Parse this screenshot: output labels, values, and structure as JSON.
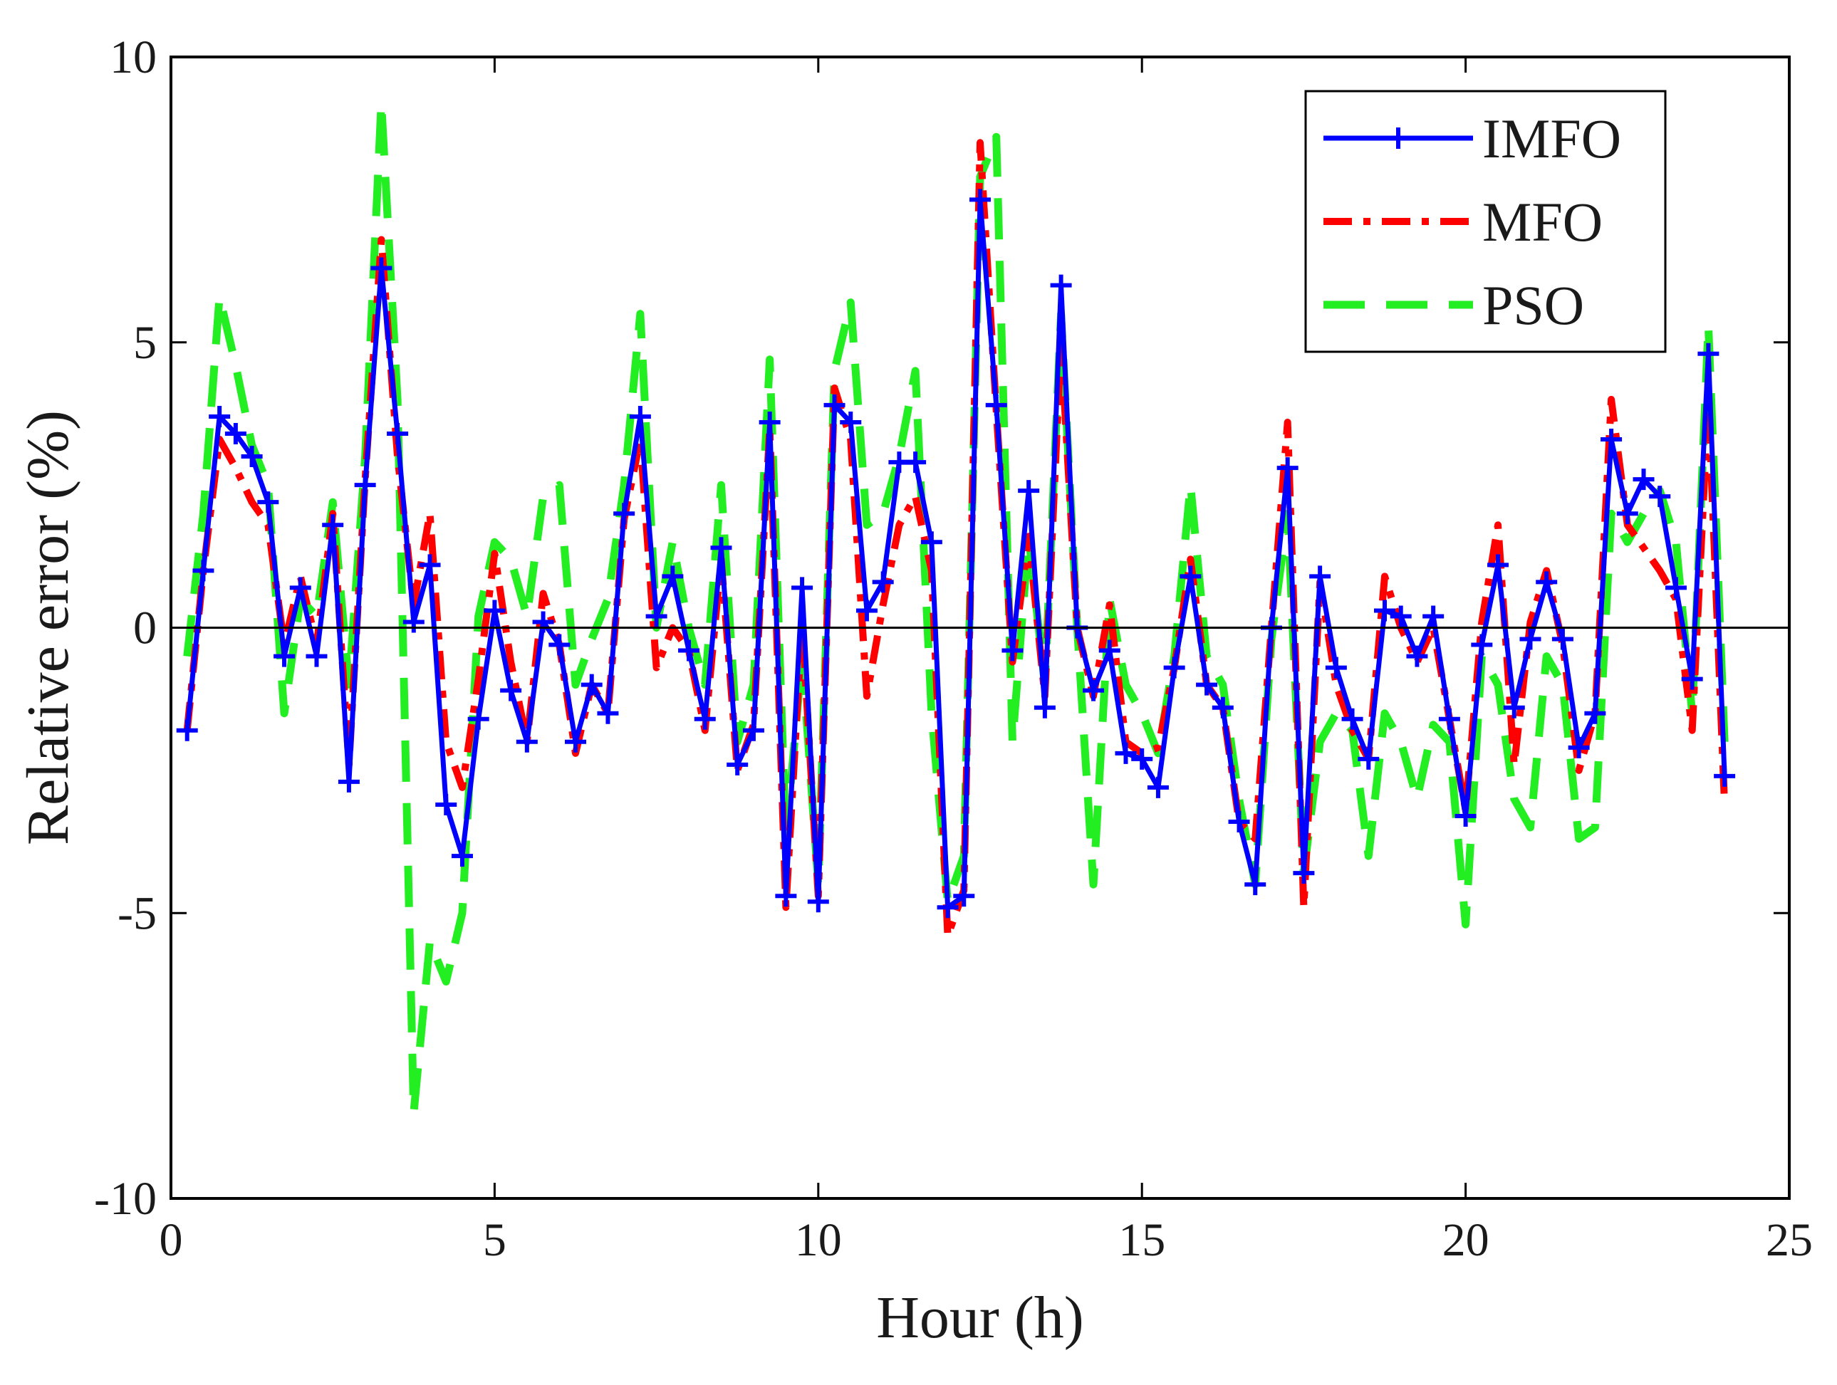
{
  "chart_data": {
    "type": "line",
    "title": "",
    "xlabel": "Hour (h)",
    "ylabel": "Relative error (%)",
    "xlim": [
      0,
      25
    ],
    "ylim": [
      -10,
      10
    ],
    "xticks": [
      "0",
      "5",
      "10",
      "15",
      "20",
      "25"
    ],
    "yticks": [
      "-10",
      "-5",
      "0",
      "5",
      "10"
    ],
    "xtick_values": [
      0,
      5,
      10,
      15,
      20,
      25
    ],
    "ytick_values": [
      -10,
      -5,
      0,
      5,
      10
    ],
    "zero_line": true,
    "grid": false,
    "legend_position": "top-right",
    "x": [
      0.25,
      0.5,
      0.75,
      1.0,
      1.25,
      1.5,
      1.75,
      2.0,
      2.25,
      2.5,
      2.75,
      3.0,
      3.25,
      3.5,
      3.75,
      4.0,
      4.25,
      4.5,
      4.75,
      5.0,
      5.25,
      5.5,
      5.75,
      6.0,
      6.25,
      6.5,
      6.75,
      7.0,
      7.25,
      7.5,
      7.75,
      8.0,
      8.25,
      8.5,
      8.75,
      9.0,
      9.25,
      9.5,
      9.75,
      10.0,
      10.25,
      10.5,
      10.75,
      11.0,
      11.25,
      11.5,
      11.75,
      12.0,
      12.25,
      12.5,
      12.75,
      13.0,
      13.25,
      13.5,
      13.75,
      14.0,
      14.25,
      14.5,
      14.75,
      15.0,
      15.25,
      15.5,
      15.75,
      16.0,
      16.25,
      16.5,
      16.75,
      17.0,
      17.25,
      17.5,
      17.75,
      18.0,
      18.25,
      18.5,
      18.75,
      19.0,
      19.25,
      19.5,
      19.75,
      20.0,
      20.25,
      20.5,
      20.75,
      21.0,
      21.25,
      21.5,
      21.75,
      22.0,
      22.25,
      22.5,
      22.75,
      23.0,
      23.25,
      23.5,
      23.75,
      24.0
    ],
    "series": [
      {
        "name": "IMFO",
        "color": "#0000ff",
        "style": "solid-plus",
        "values": [
          -1.8,
          1.0,
          3.7,
          3.4,
          3.0,
          2.2,
          -0.5,
          0.7,
          -0.5,
          1.8,
          -2.7,
          2.5,
          6.3,
          3.4,
          0.1,
          1.1,
          -3.1,
          -4.0,
          -1.6,
          0.3,
          -1.1,
          -2.0,
          0.1,
          -0.3,
          -2.0,
          -1.0,
          -1.5,
          2.0,
          3.7,
          0.2,
          0.9,
          -0.4,
          -1.6,
          1.4,
          -2.4,
          -1.8,
          3.6,
          -4.7,
          0.7,
          -4.8,
          3.9,
          3.6,
          0.3,
          0.8,
          2.9,
          2.9,
          1.5,
          -4.9,
          -4.7,
          7.5,
          3.9,
          -0.4,
          2.4,
          -1.4,
          6.0,
          0.0,
          -1.1,
          -0.4,
          -2.2,
          -2.3,
          -2.8,
          -0.7,
          0.9,
          -1.0,
          -1.4,
          -3.4,
          -4.5,
          0.0,
          2.8,
          -4.3,
          0.9,
          -0.7,
          -1.6,
          -2.3,
          0.3,
          0.2,
          -0.5,
          0.2,
          -1.6,
          -3.3,
          -0.3,
          1.1,
          -1.4,
          -0.2,
          0.8,
          -0.2,
          -2.1,
          -1.5,
          3.3,
          2.0,
          2.6,
          2.3,
          0.7,
          -0.9,
          4.8,
          -2.6
        ]
      },
      {
        "name": "MFO",
        "color": "#ff0000",
        "style": "dash-dot",
        "values": [
          -1.8,
          1.0,
          3.3,
          2.8,
          2.2,
          1.8,
          -0.3,
          0.9,
          -0.3,
          2.0,
          -2.4,
          2.6,
          6.8,
          3.0,
          0.4,
          2.0,
          -2.0,
          -2.8,
          -0.9,
          1.3,
          -0.6,
          -2.0,
          0.6,
          -0.3,
          -2.2,
          -1.0,
          -1.5,
          1.9,
          3.3,
          -0.7,
          0.0,
          -0.4,
          -1.8,
          1.2,
          -2.5,
          -1.7,
          3.5,
          -4.9,
          0.1,
          -4.7,
          4.2,
          3.3,
          -1.2,
          0.4,
          1.8,
          2.3,
          1.0,
          -5.4,
          -4.6,
          8.5,
          3.8,
          -0.6,
          1.6,
          -1.2,
          5.0,
          0.0,
          -1.2,
          0.4,
          -2.0,
          -2.2,
          -2.1,
          -0.7,
          1.2,
          -1.0,
          -1.4,
          -3.4,
          -3.7,
          0.0,
          3.6,
          -4.9,
          0.8,
          -1.0,
          -1.8,
          -2.3,
          0.9,
          0.0,
          -0.6,
          0.0,
          -1.6,
          -3.2,
          0.1,
          1.8,
          -2.4,
          0.1,
          1.0,
          -0.3,
          -2.5,
          -1.5,
          4.0,
          1.8,
          1.4,
          1.0,
          0.5,
          -1.8,
          4.0,
          -3.1
        ]
      },
      {
        "name": "PSO",
        "color": "#22ee22",
        "style": "dashed",
        "values": [
          -0.5,
          2.0,
          5.8,
          4.6,
          3.2,
          2.5,
          -1.5,
          0.5,
          0.2,
          2.2,
          -1.0,
          3.0,
          9.2,
          4.0,
          -8.5,
          -5.5,
          -6.2,
          -5.0,
          0.2,
          1.5,
          1.2,
          0.2,
          2.3,
          2.5,
          -1.0,
          -0.2,
          0.5,
          2.5,
          5.5,
          0.0,
          1.5,
          0.0,
          -1.0,
          2.5,
          -2.0,
          -1.0,
          4.7,
          -3.7,
          -0.5,
          -4.5,
          4.5,
          5.7,
          1.8,
          2.0,
          3.0,
          4.5,
          -1.5,
          -4.8,
          -4.0,
          7.9,
          8.6,
          -2.0,
          1.6,
          -1.0,
          5.5,
          0.0,
          -4.5,
          0.5,
          -1.0,
          -1.5,
          -2.2,
          -0.5,
          2.5,
          -0.5,
          -1.0,
          -3.0,
          -4.5,
          -0.2,
          2.0,
          -4.3,
          -2.0,
          -1.5,
          -1.8,
          -4.0,
          -1.5,
          -2.0,
          -3.0,
          -1.7,
          -2.0,
          -5.2,
          -0.5,
          -1.0,
          -3.0,
          -3.5,
          -0.5,
          -1.0,
          -3.7,
          -3.5,
          2.0,
          1.5,
          2.0,
          2.4,
          1.5,
          -1.5,
          5.3,
          -2.0
        ]
      }
    ]
  }
}
